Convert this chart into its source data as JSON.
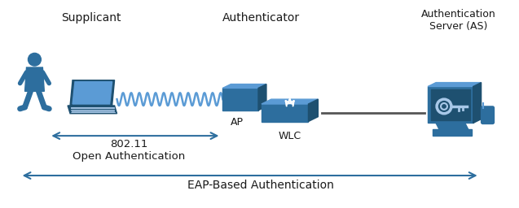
{
  "bg_color": "#ffffff",
  "icon_color": "#2d6e9e",
  "icon_color_dark": "#1e5070",
  "icon_color_light": "#5b9bd5",
  "icon_color_lighter": "#a8c8e8",
  "arrow_color": "#2d6e9e",
  "text_color": "#1a1a1a",
  "title_supplicant": "Supplicant",
  "title_authenticator": "Authenticator",
  "title_auth_server": "Authentication\nServer (AS)",
  "label_ap": "AP",
  "label_wlc": "WLC",
  "label_802": "802.11\nOpen Authentication",
  "label_eap": "EAP-Based Authentication",
  "figsize": [
    6.37,
    2.56
  ],
  "dpi": 100
}
